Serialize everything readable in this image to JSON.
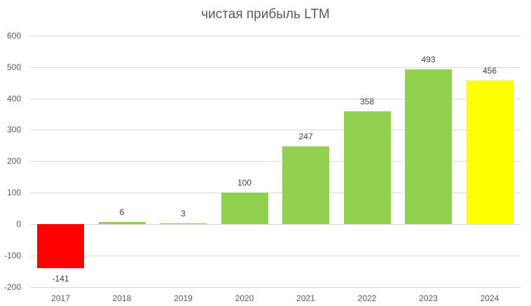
{
  "chart_data": {
    "type": "bar",
    "title": "чистая прибыль LTM",
    "xlabel": "",
    "ylabel": "",
    "ylim": [
      -200,
      600
    ],
    "yticks": [
      600,
      500,
      400,
      300,
      200,
      100,
      0,
      -100,
      -200
    ],
    "grid": true,
    "legend": "none",
    "categories": [
      "2017",
      "2018",
      "2019",
      "2020",
      "2021",
      "2022",
      "2023",
      "2024"
    ],
    "values": [
      -141,
      6,
      3,
      100,
      247,
      358,
      493,
      456
    ],
    "colors": [
      "#ff0000",
      "#92d050",
      "#92d050",
      "#92d050",
      "#92d050",
      "#92d050",
      "#92d050",
      "#ffff00"
    ],
    "data_labels": [
      "-141",
      "6",
      "3",
      "100",
      "247",
      "358",
      "493",
      "456"
    ]
  }
}
